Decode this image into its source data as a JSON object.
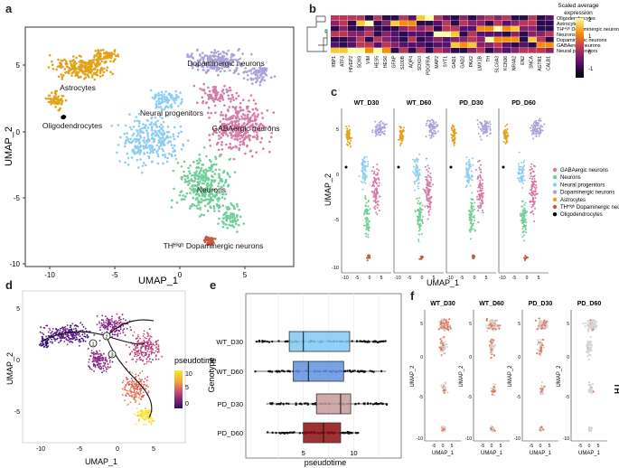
{
  "panels": {
    "a": "a",
    "b": "b",
    "c": "c",
    "d": "d",
    "e": "e",
    "f": "f"
  },
  "colors": {
    "gaba": "#d67aa8",
    "neurons": "#6fcf97",
    "progenitors": "#8ecdf2",
    "dopaminergic": "#a9a3da",
    "astrocytes": "#e0a31c",
    "thhigh": "#c55a3c",
    "oligo": "#000000",
    "boxWT30": "#7fc8f4",
    "boxWT60": "#6092e0",
    "boxPD30": "#c89a9a",
    "boxPD60": "#8b0e0e"
  },
  "panel_a": {
    "xlabel": "UMAP_1",
    "ylabel": "UMAP_2",
    "xticks": [
      "-10",
      "-5",
      "0",
      "5"
    ],
    "yticks": [
      "5",
      "0",
      "-5",
      "-10"
    ],
    "labels": {
      "astrocytes": "Astrocytes",
      "oligo": "Oligodendrocytes",
      "progenitors": "Neural progenitors",
      "dopaminergic": "Dopaminergic neurons",
      "gaba": "GABAergic neurons",
      "neurons": "Neurons",
      "thhigh": "THᴴⁱᵍʰ Dopaminergic neurons"
    }
  },
  "panel_b": {
    "rows": [
      "Oligodendrocytes",
      "Astrocytes",
      "THᴴⁱᵍʰ Dopaminergic neurons",
      "Neurons",
      "Dopaminergic neurons",
      "GABAergic neurons",
      "Neural progenitors"
    ],
    "genes": [
      "XBP1",
      "ATF3",
      "HIVEP2",
      "SOX9",
      "VIM",
      "HES5",
      "HES6",
      "GFAP",
      "S100B",
      "AQP4",
      "SOX10",
      "PDGFRA",
      "MAP2",
      "SYT1",
      "GAD1",
      "GAD2",
      "PAX2",
      "LMX1B",
      "TH",
      "SLC6A3",
      "KCNJ6",
      "NR4A2",
      "EN2",
      "SNCA",
      "AGTR1",
      "CALB1"
    ],
    "legend_title_1": "Scaled average",
    "legend_title_2": "expression",
    "legend_ticks": [
      "2",
      "1",
      "0",
      "-1"
    ]
  },
  "panel_c": {
    "titles": [
      "WT_D30",
      "WT_D60",
      "PD_D30",
      "PD_D60"
    ],
    "xlabel": "UMAP_1",
    "ylabel": "UMAP_2",
    "xticks": [
      "-10",
      "-5",
      "0",
      "5"
    ],
    "yticks": [
      "5",
      "0",
      "-5",
      "-10"
    ],
    "legend": [
      "GABAergic neurons",
      "Neurons",
      "Neural progenitors",
      "Dopaminergic neurons",
      "Astrocytes",
      "THᴴⁱᵍʰ Dopaminergic neurons",
      "Oligodendrocytes"
    ]
  },
  "panel_d": {
    "xlabel": "UMAP_1",
    "ylabel": "UMAP_2",
    "xticks": [
      "-10",
      "-5",
      "0",
      "5"
    ],
    "yticks": [
      "5",
      "0",
      "-5"
    ],
    "legend_title": "pseudotime",
    "legend_ticks": [
      "10",
      "5",
      "0"
    ],
    "nodes": [
      "1",
      "2",
      "3"
    ]
  },
  "chart_data": {
    "type": "box",
    "title": "",
    "xlabel": "pseudotime",
    "ylabel": "Genotype",
    "categories": [
      "WT_D30",
      "WT_D60",
      "PD_D30",
      "PD_D60"
    ],
    "xticks": [
      "5",
      "10"
    ],
    "xlim": [
      0,
      14
    ],
    "boxes": [
      {
        "name": "WT_D30",
        "min": 0.2,
        "q1": 3.6,
        "median": 5.0,
        "q3": 9.6,
        "max": 13.2
      },
      {
        "name": "WT_D60",
        "min": 0.2,
        "q1": 4.0,
        "median": 5.5,
        "q3": 9.0,
        "max": 13.2
      },
      {
        "name": "PD_D30",
        "min": 1.3,
        "q1": 6.3,
        "median": 8.7,
        "q3": 9.7,
        "max": 13.4
      },
      {
        "name": "PD_D60",
        "min": 1.3,
        "q1": 5.0,
        "median": 7.0,
        "q3": 8.7,
        "max": 10.5
      }
    ]
  },
  "panel_f": {
    "titles": [
      "WT_D30",
      "WT_D60",
      "PD_D30",
      "PD_D60"
    ],
    "xlabel": "UMAP_1",
    "ylabel": "UMAP_2",
    "xticks": [
      "-5",
      "0",
      "5"
    ],
    "yticks": [
      "5",
      "0",
      "-5",
      "-10"
    ],
    "gene_label": "TH"
  }
}
